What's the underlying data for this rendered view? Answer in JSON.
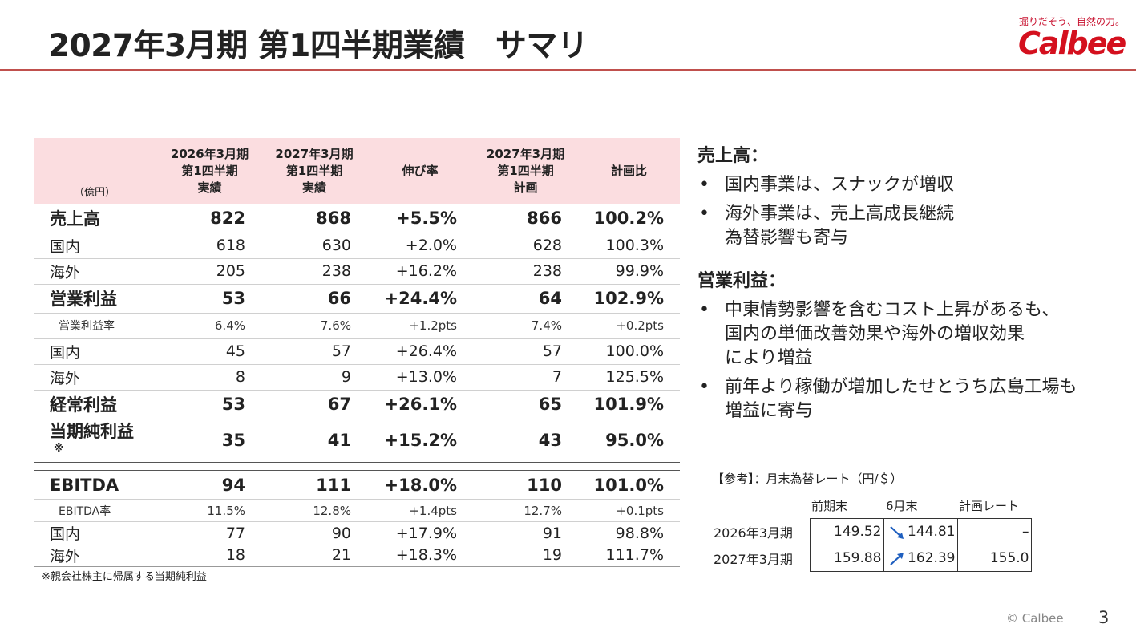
{
  "title": "2027年3月期 第1四半期業績　サマリ",
  "logo": {
    "tagline": "掘りだそう、自然の力。",
    "brand": "Calbee"
  },
  "table": {
    "unit_label": "（億円）",
    "headers": [
      [
        "2026年3月期",
        "第1四半期",
        "実績"
      ],
      [
        "2027年3月期",
        "第1四半期",
        "実績"
      ],
      [
        "伸び率"
      ],
      [
        "2027年3月期",
        "第1四半期",
        "計画"
      ],
      [
        "計画比"
      ]
    ],
    "rows": [
      {
        "label": "売上高",
        "cells": [
          "822",
          "868",
          "+5.5%",
          "866",
          "100.2%"
        ]
      },
      {
        "label": "国内",
        "cells": [
          "618",
          "630",
          "+2.0%",
          "628",
          "100.3%"
        ]
      },
      {
        "label": "海外",
        "cells": [
          "205",
          "238",
          "+16.2%",
          "238",
          "99.9%"
        ]
      },
      {
        "label": "営業利益",
        "cells": [
          "53",
          "66",
          "+24.4%",
          "64",
          "102.9%"
        ]
      },
      {
        "label": "営業利益率",
        "cells": [
          "6.4%",
          "7.6%",
          "+1.2pts",
          "7.4%",
          "+0.2pts"
        ]
      },
      {
        "label": "国内",
        "cells": [
          "45",
          "57",
          "+26.4%",
          "57",
          "100.0%"
        ]
      },
      {
        "label": "海外",
        "cells": [
          "8",
          "9",
          "+13.0%",
          "7",
          "125.5%"
        ]
      },
      {
        "label": "経常利益",
        "cells": [
          "53",
          "67",
          "+26.1%",
          "65",
          "101.9%"
        ]
      },
      {
        "label": "当期純利益",
        "mark": "※",
        "cells": [
          "35",
          "41",
          "+15.2%",
          "43",
          "95.0%"
        ]
      },
      {
        "label": "EBITDA",
        "cells": [
          "94",
          "111",
          "+18.0%",
          "110",
          "101.0%"
        ]
      },
      {
        "label": "EBITDA率",
        "cells": [
          "11.5%",
          "12.8%",
          "+1.4pts",
          "12.7%",
          "+0.1pts"
        ]
      },
      {
        "label": "国内",
        "cells": [
          "77",
          "90",
          "+17.9%",
          "91",
          "98.8%"
        ]
      },
      {
        "label": "海外",
        "cells": [
          "18",
          "21",
          "+18.3%",
          "19",
          "111.7%"
        ]
      }
    ]
  },
  "footnote": "※親会社株主に帰属する当期純利益",
  "commentary": {
    "sales_heading": "売上高：",
    "sales_bullets": [
      "国内事業は、スナックが増収",
      [
        "海外事業は、売上高成長継続",
        "為替影響も寄与"
      ]
    ],
    "op_heading": "営業利益：",
    "op_bullets": [
      [
        "中東情勢影響を含むコスト上昇があるも、",
        "国内の単価改善効果や海外の増収効果",
        "により増益"
      ],
      [
        "前年より稼働が増加したせとうち広島工場も",
        "増益に寄与"
      ]
    ]
  },
  "fx": {
    "caption": "【参考】：月末為替レート（円/＄）",
    "headers": [
      "前期末",
      "6月末",
      "計画レート"
    ],
    "rows": [
      {
        "year": "2026年3月期",
        "values": [
          "149.52",
          "144.81",
          "–"
        ],
        "direction": "down"
      },
      {
        "year": "2027年3月期",
        "values": [
          "159.88",
          "162.39",
          "155.0"
        ],
        "direction": "up"
      }
    ],
    "arrow_color": "#1f5fbf"
  },
  "footer": {
    "copyright": "© Calbee",
    "page": "3"
  },
  "colors": {
    "accent": "#c0504d",
    "header_fill": "#fbdde0",
    "brand_red": "#d4101e"
  }
}
